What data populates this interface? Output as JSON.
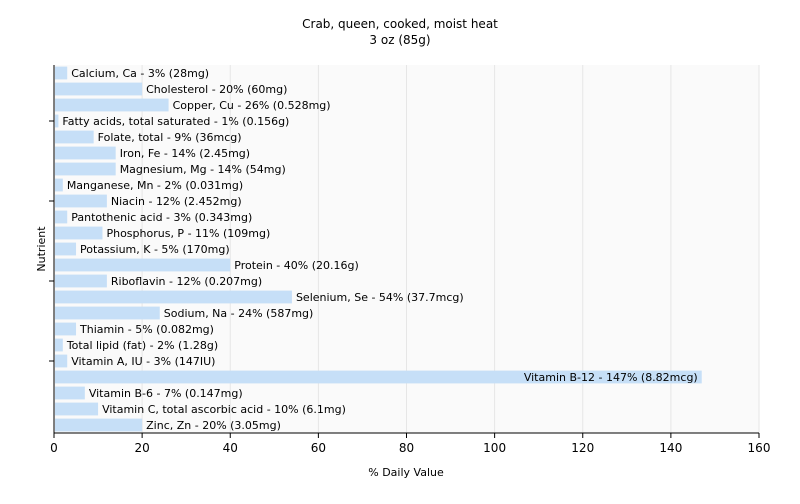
{
  "chart_data": {
    "type": "bar",
    "orientation": "horizontal",
    "title": "Crab, queen, cooked, moist heat",
    "subtitle": "3 oz (85g)",
    "xlabel": "% Daily Value",
    "ylabel": "Nutrient",
    "xlim": [
      0,
      160
    ],
    "xticks": [
      0,
      20,
      40,
      60,
      80,
      100,
      120,
      140,
      160
    ],
    "grid": true,
    "bar_color": "#c6dff7",
    "grid_color": "#e6e6e6",
    "categories": [
      "Calcium, Ca",
      "Cholesterol",
      "Copper, Cu",
      "Fatty acids, total saturated",
      "Folate, total",
      "Iron, Fe",
      "Magnesium, Mg",
      "Manganese, Mn",
      "Niacin",
      "Pantothenic acid",
      "Phosphorus, P",
      "Potassium, K",
      "Protein",
      "Riboflavin",
      "Selenium, Se",
      "Sodium, Na",
      "Thiamin",
      "Total lipid (fat)",
      "Vitamin A, IU",
      "Vitamin B-12",
      "Vitamin B-6",
      "Vitamin C, total ascorbic acid",
      "Zinc, Zn"
    ],
    "values": [
      3,
      20,
      26,
      1,
      9,
      14,
      14,
      2,
      12,
      3,
      11,
      5,
      40,
      12,
      54,
      24,
      5,
      2,
      3,
      147,
      7,
      10,
      20
    ],
    "labels": [
      "Calcium, Ca - 3% (28mg)",
      "Cholesterol - 20% (60mg)",
      "Copper, Cu - 26% (0.528mg)",
      "Fatty acids, total saturated - 1% (0.156g)",
      "Folate, total - 9% (36mcg)",
      "Iron, Fe - 14% (2.45mg)",
      "Magnesium, Mg - 14% (54mg)",
      "Manganese, Mn - 2% (0.031mg)",
      "Niacin - 12% (2.452mg)",
      "Pantothenic acid - 3% (0.343mg)",
      "Phosphorus, P - 11% (109mg)",
      "Potassium, K - 5% (170mg)",
      "Protein - 40% (20.16g)",
      "Riboflavin - 12% (0.207mg)",
      "Selenium, Se - 54% (37.7mcg)",
      "Sodium, Na - 24% (587mg)",
      "Thiamin - 5% (0.082mg)",
      "Total lipid (fat) - 2% (1.28g)",
      "Vitamin A, IU - 3% (147IU)",
      "Vitamin B-12 - 147% (8.82mcg)",
      "Vitamin B-6 - 7% (0.147mg)",
      "Vitamin C, total ascorbic acid - 10% (6.1mg)",
      "Zinc, Zn - 20% (3.05mg)"
    ]
  }
}
